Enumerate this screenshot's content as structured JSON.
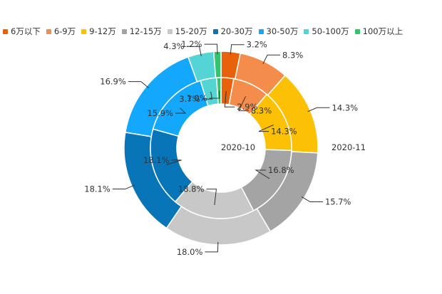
{
  "chart_data": {
    "type": "donut",
    "categories": [
      "6万以下",
      "6-9万",
      "9-12万",
      "12-15万",
      "15-20万",
      "20-30万",
      "30-50万",
      "50-100万",
      "100万以上"
    ],
    "colors": [
      "#e8620c",
      "#f48d4c",
      "#fcc004",
      "#a4a4a4",
      "#c8c8c8",
      "#0875b8",
      "#14a8fc",
      "#54d4d4",
      "#34c46c"
    ],
    "series": [
      {
        "name": "2020-10",
        "ring": "inner",
        "values": [
          2.9,
          8.3,
          14.3,
          16.8,
          18.8,
          18.1,
          15.9,
          3.7,
          1.0
        ]
      },
      {
        "name": "2020-11",
        "ring": "outer",
        "values": [
          3.2,
          8.3,
          14.3,
          15.7,
          18.0,
          18.1,
          16.9,
          4.3,
          1.2
        ]
      }
    ],
    "series_labels": [
      "2020-10",
      "2020-11"
    ],
    "value_suffix": "%"
  }
}
